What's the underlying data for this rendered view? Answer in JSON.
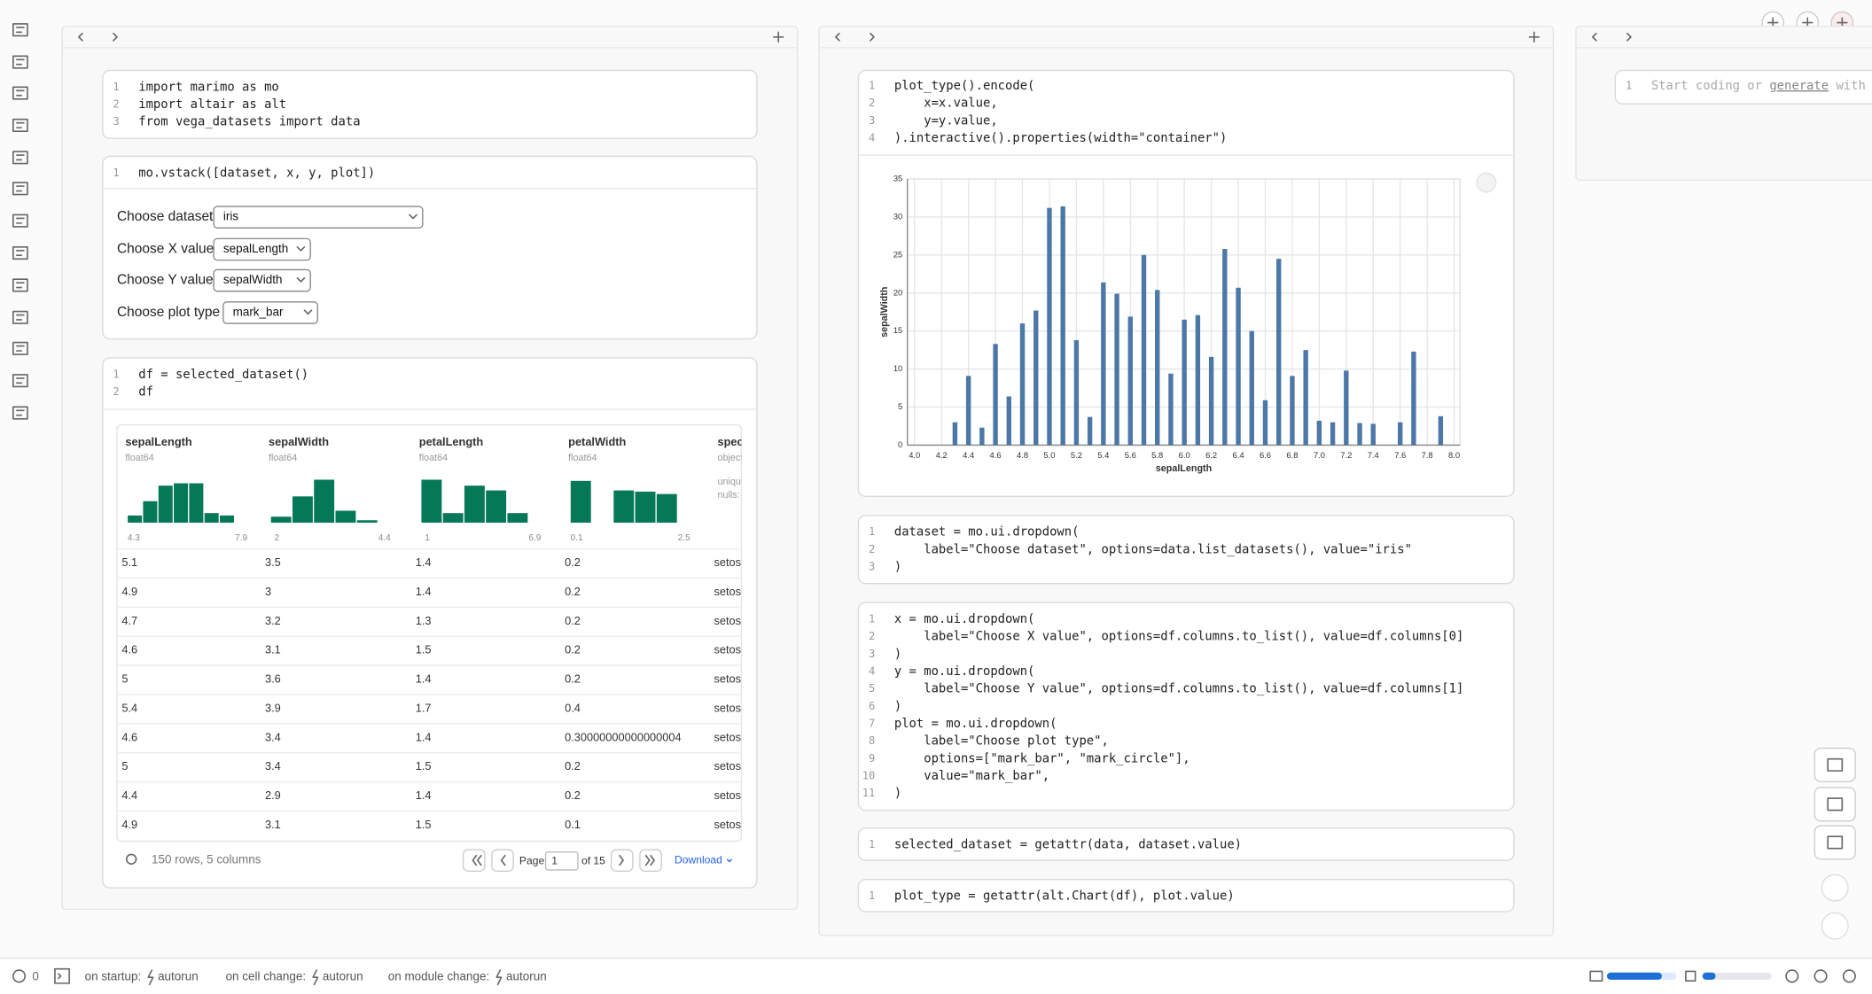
{
  "notebook": {
    "columns": [
      {
        "cells": [
          {
            "lines": [
              {
                "n": 1,
                "code": "import marimo as mo"
              },
              {
                "n": 2,
                "code": "import altair as alt"
              },
              {
                "n": 3,
                "code": "from vega_datasets import data"
              }
            ]
          },
          {
            "lines": [
              {
                "n": 1,
                "code": "mo.vstack([dataset, x, y, plot])"
              }
            ],
            "controls": [
              {
                "label": "Choose dataset",
                "value": "iris"
              },
              {
                "label": "Choose X value",
                "value": "sepalLength"
              },
              {
                "label": "Choose Y value",
                "value": "sepalWidth"
              },
              {
                "label": "Choose plot type",
                "value": "mark_bar"
              }
            ]
          },
          {
            "lines": [
              {
                "n": 1,
                "code": "df = selected_dataset()"
              },
              {
                "n": 2,
                "code": "df"
              }
            ],
            "table": {
              "columns": [
                {
                  "name": "sepalLength",
                  "dtype": "float64",
                  "min": 4.3,
                  "max": 7.9,
                  "hist": [
                    6,
                    18,
                    31,
                    33,
                    33,
                    8,
                    6
                  ]
                },
                {
                  "name": "sepalWidth",
                  "dtype": "float64",
                  "min": 2,
                  "max": 4.4,
                  "hist": [
                    5,
                    22,
                    36,
                    10,
                    2
                  ]
                },
                {
                  "name": "petalLength",
                  "dtype": "float64",
                  "min": 1,
                  "max": 6.9,
                  "hist": [
                    36,
                    8,
                    31,
                    27,
                    8
                  ]
                },
                {
                  "name": "petalWidth",
                  "dtype": "float64",
                  "min": 0.1,
                  "max": 2.5,
                  "hist": [
                    35,
                    0,
                    27,
                    26,
                    24
                  ]
                },
                {
                  "name": "species",
                  "dtype": "object",
                  "stats": [
                    "unique",
                    "nulls:"
                  ]
                }
              ],
              "rows": [
                [
                  5.1,
                  3.5,
                  1.4,
                  0.2,
                  "setosa"
                ],
                [
                  4.9,
                  3,
                  1.4,
                  0.2,
                  "setosa"
                ],
                [
                  4.7,
                  3.2,
                  1.3,
                  0.2,
                  "setosa"
                ],
                [
                  4.6,
                  3.1,
                  1.5,
                  0.2,
                  "setosa"
                ],
                [
                  5,
                  3.6,
                  1.4,
                  0.2,
                  "setosa"
                ],
                [
                  5.4,
                  3.9,
                  1.7,
                  0.4,
                  "setosa"
                ],
                [
                  4.6,
                  3.4,
                  1.4,
                  "0.30000000000000004",
                  "setosa"
                ],
                [
                  5,
                  3.4,
                  1.5,
                  0.2,
                  "setosa"
                ],
                [
                  4.4,
                  2.9,
                  1.4,
                  0.2,
                  "setosa"
                ],
                [
                  4.9,
                  3.1,
                  1.5,
                  0.1,
                  "setosa"
                ]
              ],
              "summary": "150 rows, 5 columns",
              "page_label": "Page",
              "page": 1,
              "page_total": "of 15",
              "download": "Download"
            }
          }
        ]
      },
      {
        "cells": [
          {
            "lines": [
              {
                "n": 1,
                "code": "plot_type().encode("
              },
              {
                "n": 2,
                "code": "    x=x.value,"
              },
              {
                "n": 3,
                "code": "    y=y.value,"
              },
              {
                "n": 4,
                "code": ").interactive().properties(width=\"container\")"
              }
            ]
          },
          {
            "lines": [
              {
                "n": 1,
                "code": "dataset = mo.ui.dropdown("
              },
              {
                "n": 2,
                "code": "    label=\"Choose dataset\", options=data.list_datasets(), value=\"iris\""
              },
              {
                "n": 3,
                "code": ")"
              }
            ]
          },
          {
            "lines": [
              {
                "n": 1,
                "code": "x = mo.ui.dropdown("
              },
              {
                "n": 2,
                "code": "    label=\"Choose X value\", options=df.columns.to_list(), value=df.columns[0]"
              },
              {
                "n": 3,
                "code": ")"
              },
              {
                "n": 4,
                "code": "y = mo.ui.dropdown("
              },
              {
                "n": 5,
                "code": "    label=\"Choose Y value\", options=df.columns.to_list(), value=df.columns[1]"
              },
              {
                "n": 6,
                "code": ")"
              },
              {
                "n": 7,
                "code": "plot = mo.ui.dropdown("
              },
              {
                "n": 8,
                "code": "    label=\"Choose plot type\","
              },
              {
                "n": 9,
                "code": "    options=[\"mark_bar\", \"mark_circle\"],"
              },
              {
                "n": 10,
                "code": "    value=\"mark_bar\","
              },
              {
                "n": 11,
                "code": ")"
              }
            ]
          },
          {
            "lines": [
              {
                "n": 1,
                "code": "selected_dataset = getattr(data, dataset.value)"
              }
            ]
          },
          {
            "lines": [
              {
                "n": 1,
                "code": "plot_type = getattr(alt.Chart(df), plot.value)"
              }
            ]
          }
        ]
      },
      {
        "cells": [
          {
            "lines": [
              {
                "n": 1,
                "placeholder": [
                  "Start coding or ",
                  "generate",
                  " with"
                ]
              }
            ]
          }
        ]
      }
    ]
  },
  "chart_data": {
    "type": "bar",
    "x_label": "sepalLength",
    "y_label": "sepalWidth",
    "color": "#4c78a8",
    "grid": true,
    "x": [
      4.3,
      4.4,
      4.5,
      4.6,
      4.7,
      4.8,
      4.9,
      5.0,
      5.1,
      5.2,
      5.3,
      5.4,
      5.5,
      5.6,
      5.7,
      5.8,
      5.9,
      6.0,
      6.1,
      6.2,
      6.3,
      6.4,
      6.5,
      6.6,
      6.7,
      6.8,
      6.9,
      7.0,
      7.1,
      7.2,
      7.3,
      7.4,
      7.6,
      7.7,
      7.9
    ],
    "values": [
      3.0,
      9.1,
      2.3,
      13.3,
      6.4,
      16.0,
      17.7,
      31.2,
      31.4,
      13.8,
      3.7,
      21.4,
      19.9,
      16.9,
      25.0,
      20.4,
      9.4,
      16.5,
      17.1,
      11.6,
      25.8,
      20.7,
      15.0,
      5.9,
      24.5,
      9.1,
      12.5,
      3.2,
      3.0,
      9.8,
      2.9,
      2.8,
      3.0,
      12.3,
      3.8
    ],
    "xlim": [
      4,
      8
    ],
    "xticks": [
      {
        "value": 4,
        "label": "4.0"
      },
      4.2,
      4.4,
      4.6,
      4.8,
      {
        "value": 5,
        "label": "5.0"
      },
      5.2,
      5.4,
      5.6,
      5.8,
      {
        "value": 6,
        "label": "6.0"
      },
      6.2,
      6.4,
      6.6,
      6.8,
      {
        "value": 7,
        "label": "7.0"
      },
      7.2,
      7.4,
      7.6,
      7.8,
      {
        "value": 8,
        "label": "8.0"
      }
    ],
    "ylim": [
      0,
      35
    ],
    "yticks": [
      0,
      5,
      10,
      15,
      20,
      25,
      30,
      35
    ]
  },
  "status_bar": {
    "error_count": 0,
    "items": [
      {
        "label": "on startup:",
        "value": "autorun"
      },
      {
        "label": "on cell change:",
        "value": "autorun"
      },
      {
        "label": "on module change:",
        "value": "autorun"
      }
    ]
  }
}
